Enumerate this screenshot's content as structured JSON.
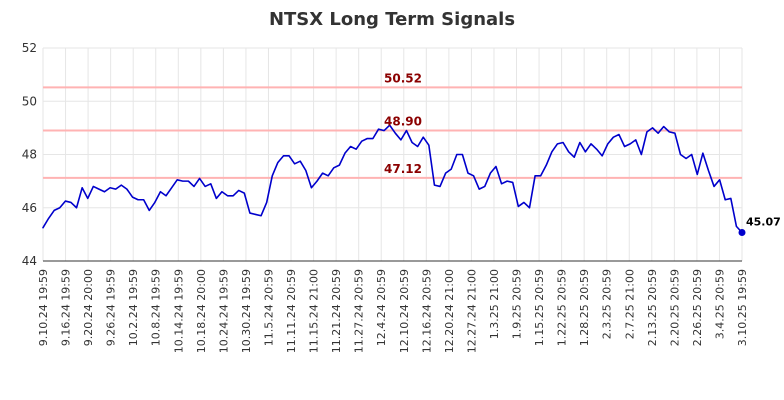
{
  "chart_data": {
    "type": "line",
    "title": "NTSX Long Term Signals",
    "xlabel": "",
    "ylabel": "",
    "ylim": [
      44,
      52
    ],
    "yticks": [
      44,
      46,
      48,
      50,
      52
    ],
    "grid": true,
    "x_tick_labels": [
      "9.10.24 19:59",
      "9.16.24 19:59",
      "9.20.24 20:00",
      "9.26.24 19:59",
      "10.2.24 19:59",
      "10.8.24 19:59",
      "10.14.24 19:59",
      "10.18.24 20:00",
      "10.24.24 19:59",
      "10.30.24 19:59",
      "11.5.24 20:59",
      "11.11.24 20:59",
      "11.15.24 21:00",
      "11.21.24 20:59",
      "11.27.24 20:59",
      "12.4.24 20:59",
      "12.10.24 20:59",
      "12.16.24 20:59",
      "12.20.24 21:00",
      "12.27.24 21:00",
      "1.3.25 21:00",
      "1.9.25 20:59",
      "1.15.25 20:59",
      "1.22.25 20:59",
      "1.28.25 20:59",
      "2.3.25 20:59",
      "2.7.25 21:00",
      "2.13.25 20:59",
      "2.20.25 20:59",
      "2.26.25 20:59",
      "3.4.25 20:59",
      "3.10.25 19:59"
    ],
    "levels": [
      {
        "value": 50.52,
        "label": "50.52",
        "color": "#ffb3b3"
      },
      {
        "value": 48.9,
        "label": "48.90",
        "color": "#ffb3b3"
      },
      {
        "value": 47.12,
        "label": "47.12",
        "color": "#ffb3b3"
      }
    ],
    "series": [
      {
        "color": "#0000cc",
        "values": [
          45.25,
          45.6,
          45.9,
          46.0,
          46.25,
          46.2,
          46.0,
          46.75,
          46.35,
          46.8,
          46.7,
          46.6,
          46.75,
          46.7,
          46.85,
          46.7,
          46.4,
          46.3,
          46.3,
          45.9,
          46.2,
          46.6,
          46.45,
          46.75,
          47.05,
          47.0,
          47.0,
          46.8,
          47.1,
          46.8,
          46.9,
          46.35,
          46.6,
          46.45,
          46.45,
          46.65,
          46.55,
          45.8,
          45.75,
          45.7,
          46.2,
          47.2,
          47.7,
          47.95,
          47.95,
          47.65,
          47.75,
          47.4,
          46.75,
          47.0,
          47.3,
          47.2,
          47.5,
          47.6,
          48.05,
          48.3,
          48.2,
          48.5,
          48.6,
          48.6,
          48.95,
          48.9,
          49.1,
          48.8,
          48.55,
          48.9,
          48.45,
          48.3,
          48.65,
          48.35,
          46.85,
          46.8,
          47.3,
          47.45,
          48.0,
          48.0,
          47.3,
          47.2,
          46.7,
          46.8,
          47.3,
          47.55,
          46.9,
          47.0,
          46.95,
          46.05,
          46.2,
          46.0,
          47.2,
          47.2,
          47.6,
          48.1,
          48.4,
          48.45,
          48.1,
          47.9,
          48.45,
          48.1,
          48.4,
          48.2,
          47.95,
          48.4,
          48.65,
          48.75,
          48.3,
          48.4,
          48.55,
          48.0,
          48.85,
          49.0,
          48.8,
          49.05,
          48.85,
          48.8,
          48.0,
          47.85,
          48.0,
          47.25,
          48.05,
          47.4,
          46.8,
          47.05,
          46.3,
          46.35,
          45.3,
          45.07
        ]
      }
    ],
    "last_value": 45.07,
    "last_label": "45.07"
  }
}
